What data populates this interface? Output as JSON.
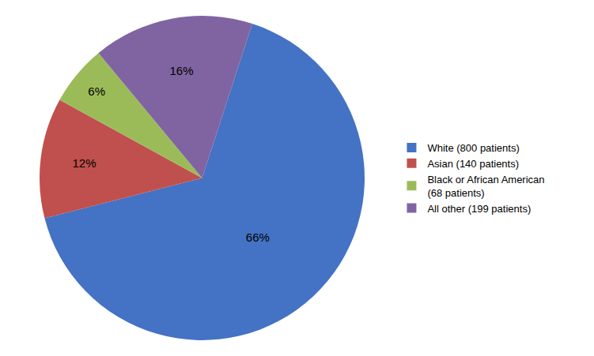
{
  "chart_data": {
    "type": "pie",
    "categories": [
      "White (800 patients)",
      "Asian (140 patients)",
      "Black or African American\n(68 patients)",
      "All other (199 patients)"
    ],
    "values": [
      66,
      12,
      6,
      16
    ],
    "value_labels": [
      "66%",
      "12%",
      "6%",
      "16%"
    ],
    "colors": [
      "#4472C4",
      "#C0504D",
      "#9BBB59",
      "#8064A2"
    ],
    "data_labels": true,
    "legend": "right"
  }
}
